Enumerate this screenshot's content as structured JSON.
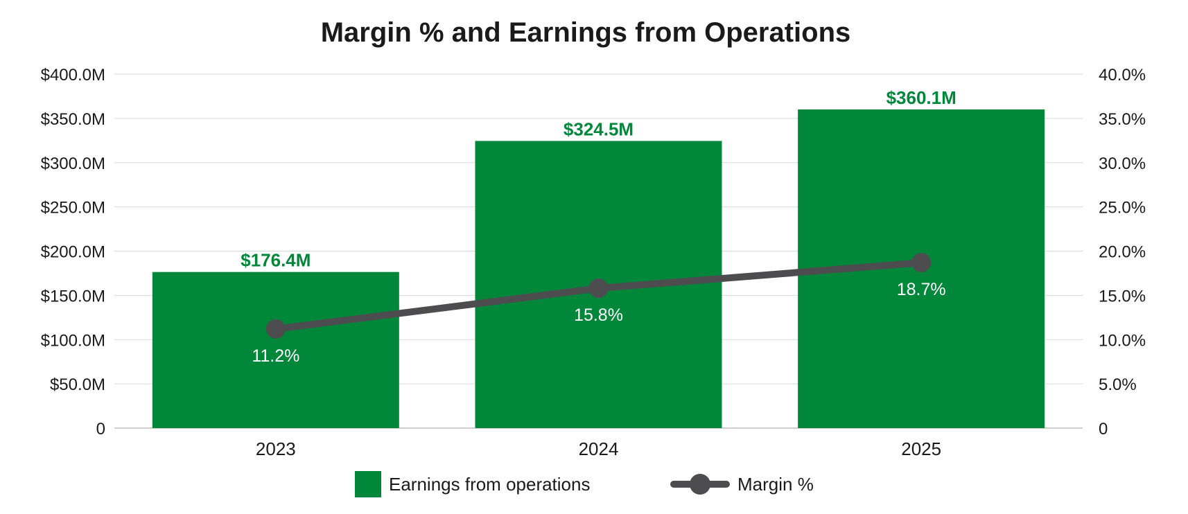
{
  "chart_data": {
    "type": "bar",
    "title": "Margin % and Earnings from Operations",
    "categories": [
      "2023",
      "2024",
      "2025"
    ],
    "series": [
      {
        "name": "Earnings from operations",
        "kind": "bar",
        "axis": "left",
        "values": [
          176.4,
          324.5,
          360.1
        ],
        "labels": [
          "$176.4M",
          "$324.5M",
          "$360.1M"
        ],
        "color": "#00873a"
      },
      {
        "name": "Margin %",
        "kind": "line",
        "axis": "right",
        "values": [
          11.2,
          15.8,
          18.7
        ],
        "labels": [
          "11.2%",
          "15.8%",
          "18.7%"
        ],
        "color": "#4d4d4f"
      }
    ],
    "left_axis": {
      "range": [
        0,
        400
      ],
      "ticks": [
        0,
        50,
        100,
        150,
        200,
        250,
        300,
        350,
        400
      ],
      "tick_labels": [
        "0",
        "$50.0M",
        "$100.0M",
        "$150.0M",
        "$200.0M",
        "$250.0M",
        "$300.0M",
        "$350.0M",
        "$400.0M"
      ]
    },
    "right_axis": {
      "range": [
        0,
        40
      ],
      "ticks": [
        0,
        5,
        10,
        15,
        20,
        25,
        30,
        35,
        40
      ],
      "tick_labels": [
        "0",
        "5.0%",
        "10.0%",
        "15.0%",
        "20.0%",
        "25.0%",
        "30.0%",
        "35.0%",
        "40.0%"
      ]
    },
    "grid": true,
    "legend_position": "bottom-center",
    "colors": {
      "bar": "#00873a",
      "bar_label": "#00873a",
      "line": "#4d4d4f",
      "grid": "#d9d9d9",
      "text": "#1a1a1a"
    }
  }
}
